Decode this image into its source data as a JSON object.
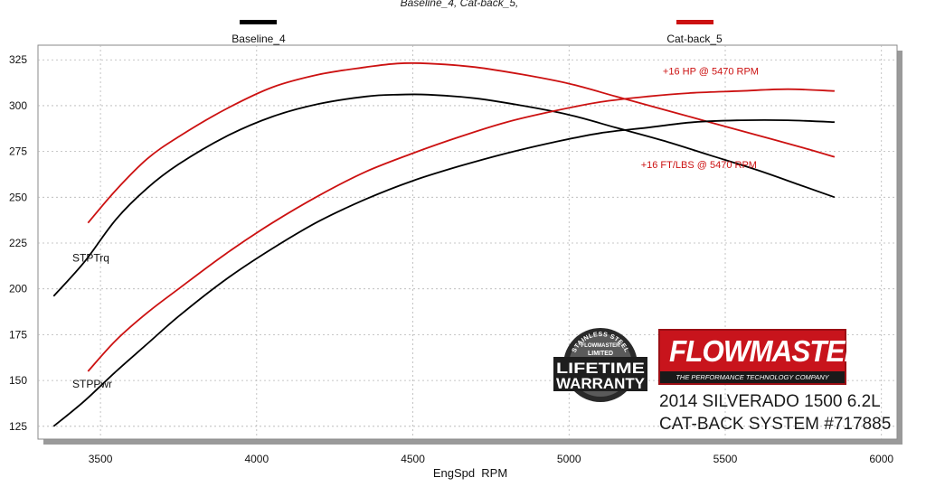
{
  "chart_data": {
    "type": "line",
    "title": "Baseline_4, Cat-back_5,",
    "xlabel": "EngSpd  RPM",
    "ylabel": "",
    "xlim": [
      3300,
      6050
    ],
    "ylim": [
      118,
      333
    ],
    "x_ticks": [
      3500,
      4000,
      4500,
      5000,
      5500,
      6000
    ],
    "y_ticks": [
      125,
      150,
      175,
      200,
      225,
      250,
      275,
      300,
      325
    ],
    "grid": true,
    "legend": [
      {
        "name": "Baseline_4",
        "color": "#000000"
      },
      {
        "name": "Cat-back_5",
        "color": "#cc1111"
      }
    ],
    "series": [
      {
        "name": "Baseline_4",
        "metric": "STPTrq",
        "color": "#000000",
        "x": [
          3350,
          3450,
          3550,
          3650,
          3750,
          3900,
          4050,
          4200,
          4350,
          4450,
          4550,
          4700,
          4850,
          5000,
          5150,
          5300,
          5450,
          5600,
          5750,
          5850
        ],
        "y": [
          196,
          215,
          238,
          255,
          268,
          283,
          294,
          301,
          305,
          306,
          306,
          304,
          300,
          295,
          288,
          281,
          273,
          265,
          256,
          250
        ]
      },
      {
        "name": "Cat-back_5",
        "metric": "STPTrq",
        "color": "#cc1111",
        "x": [
          3460,
          3550,
          3650,
          3750,
          3900,
          4050,
          4200,
          4350,
          4450,
          4550,
          4700,
          4850,
          5000,
          5150,
          5300,
          5450,
          5600,
          5750,
          5850
        ],
        "y": [
          236,
          254,
          271,
          283,
          298,
          310,
          317,
          321,
          323,
          323,
          321,
          317,
          312,
          305,
          298,
          291,
          284,
          277,
          272
        ]
      },
      {
        "name": "Baseline_4",
        "metric": "STPPwr",
        "color": "#000000",
        "x": [
          3350,
          3450,
          3550,
          3650,
          3750,
          3900,
          4050,
          4200,
          4350,
          4500,
          4650,
          4800,
          4950,
          5100,
          5250,
          5400,
          5550,
          5700,
          5850
        ],
        "y": [
          125,
          139,
          155,
          170,
          185,
          205,
          222,
          237,
          249,
          259,
          267,
          274,
          280,
          285,
          288,
          291,
          292,
          292,
          291
        ]
      },
      {
        "name": "Cat-back_5",
        "metric": "STPPwr",
        "color": "#cc1111",
        "x": [
          3460,
          3550,
          3650,
          3750,
          3900,
          4050,
          4200,
          4350,
          4500,
          4650,
          4800,
          4950,
          5100,
          5250,
          5400,
          5550,
          5700,
          5850
        ],
        "y": [
          155,
          172,
          187,
          200,
          219,
          236,
          251,
          264,
          274,
          283,
          291,
          297,
          302,
          305,
          307,
          308,
          309,
          308
        ]
      }
    ],
    "curve_labels": [
      {
        "text": "STPTrq",
        "x": 3330,
        "y": 215
      },
      {
        "text": "STPPwr",
        "x": 3330,
        "y": 146
      }
    ],
    "annotations": [
      {
        "text": "+16 HP @ 5470 RPM",
        "x": 5300,
        "y": 317,
        "color": "#cc1111"
      },
      {
        "text": "+16 FT/LBS @ 5470 RPM",
        "x": 5230,
        "y": 266,
        "color": "#cc1111"
      }
    ]
  },
  "badge": {
    "arc_text": "STAINLESS STEEL",
    "brand_small": "FLOWMASTER",
    "limited": "LIMITED",
    "line1": "LIFETIME",
    "line2": "WARRANTY"
  },
  "brand": {
    "logo": "FLOWMASTER",
    "tagline": "THE PERFORMANCE TECHNOLOGY COMPANY"
  },
  "vehicle": {
    "line1": "2014 SILVERADO 1500 6.2L",
    "line2": "CAT-BACK SYSTEM #717885"
  }
}
